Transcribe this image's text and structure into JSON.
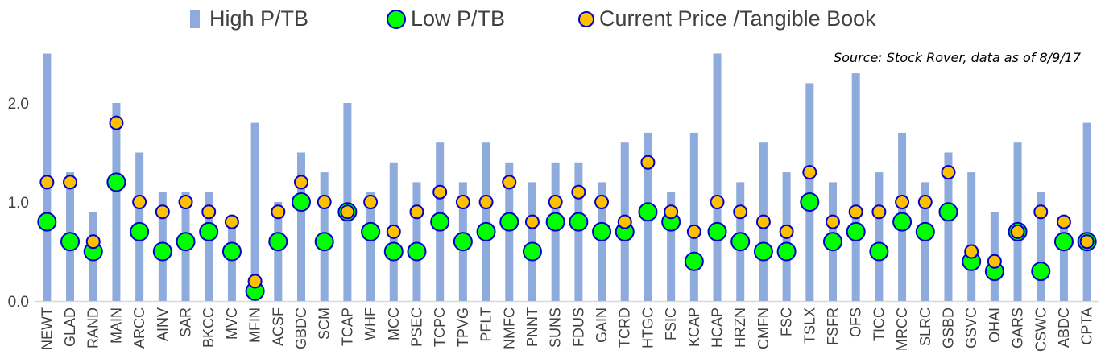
{
  "chart_data": {
    "type": "bar",
    "source": "Source: Stock Rover, data as of 8/9/17",
    "ylim": [
      0,
      2.5
    ],
    "yticks": [
      "0.0",
      "1.0",
      "2.0"
    ],
    "legend_position": "top",
    "categories": [
      "NEWT",
      "GLAD",
      "RAND",
      "MAIN",
      "ARCC",
      "AINV",
      "SAR",
      "BKCC",
      "MVC",
      "MFIN",
      "ACSF",
      "GBDC",
      "SCM",
      "TCAP",
      "WHF",
      "MCC",
      "PSEC",
      "TCPC",
      "TPVG",
      "PFLT",
      "NMFC",
      "PNNT",
      "SUNS",
      "FDUS",
      "GAIN",
      "TCRD",
      "HTGC",
      "FSIC",
      "KCAP",
      "HCAP",
      "HRZN",
      "CMFN",
      "FSC",
      "TSLX",
      "FSFR",
      "OFS",
      "TICC",
      "MRCC",
      "SLRC",
      "GSBD",
      "GSVC",
      "OHAI",
      "GARS",
      "CSWC",
      "ABDC",
      "CPTA"
    ],
    "series": [
      {
        "name": "High P/TB",
        "kind": "bar",
        "color": "#8faadc",
        "values": [
          2.5,
          1.3,
          0.9,
          2.0,
          1.5,
          1.1,
          1.1,
          1.1,
          0.8,
          1.8,
          1.0,
          1.5,
          1.3,
          2.0,
          1.1,
          1.4,
          1.2,
          1.6,
          1.2,
          1.6,
          1.4,
          1.2,
          1.4,
          1.4,
          1.2,
          1.6,
          1.7,
          1.1,
          1.7,
          2.5,
          1.2,
          1.6,
          1.3,
          2.2,
          1.2,
          2.3,
          1.3,
          1.7,
          1.2,
          1.5,
          1.3,
          0.9,
          1.6,
          1.1,
          0.8,
          1.8
        ]
      },
      {
        "name": "Low P/TB",
        "kind": "marker",
        "color": "#00ff00",
        "values": [
          0.8,
          0.6,
          0.5,
          1.2,
          0.7,
          0.5,
          0.6,
          0.7,
          0.5,
          0.1,
          0.6,
          1.0,
          0.6,
          0.9,
          0.7,
          0.5,
          0.5,
          0.8,
          0.6,
          0.7,
          0.8,
          0.5,
          0.8,
          0.8,
          0.7,
          0.7,
          0.9,
          0.8,
          0.4,
          0.7,
          0.6,
          0.5,
          0.5,
          1.0,
          0.6,
          0.7,
          0.5,
          0.8,
          0.7,
          0.9,
          0.4,
          0.3,
          0.7,
          0.3,
          0.6,
          0.6
        ]
      },
      {
        "name": "Current Price /Tangible Book",
        "kind": "marker",
        "color": "#ffc000",
        "values": [
          1.2,
          1.2,
          0.6,
          1.8,
          1.0,
          0.9,
          1.0,
          0.9,
          0.8,
          0.2,
          0.9,
          1.2,
          1.0,
          0.9,
          1.0,
          0.7,
          0.9,
          1.1,
          1.0,
          1.0,
          1.2,
          0.8,
          1.0,
          1.1,
          1.0,
          0.8,
          1.4,
          0.9,
          0.7,
          1.0,
          0.9,
          0.8,
          0.7,
          1.3,
          0.8,
          0.9,
          0.9,
          1.0,
          1.0,
          1.3,
          0.5,
          0.4,
          0.7,
          0.9,
          0.8,
          0.6
        ]
      }
    ]
  },
  "colors": {
    "marker_outline": "#0000cc",
    "axis": "#d9d9d9",
    "text": "#404040"
  }
}
